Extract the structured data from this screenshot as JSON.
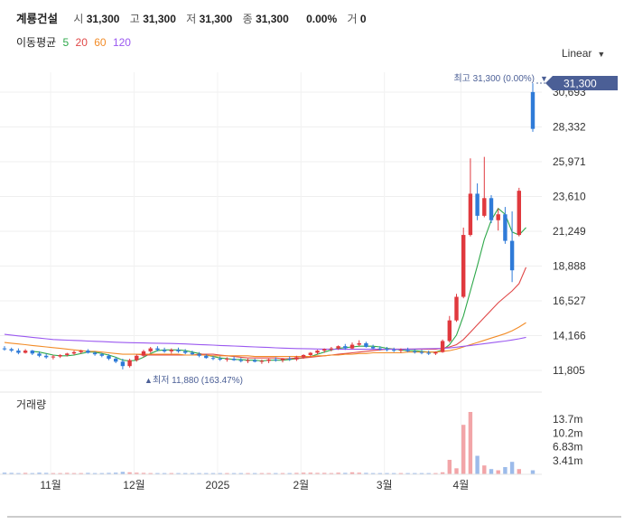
{
  "header": {
    "stock_name": "계룡건설",
    "open_label": "시",
    "open_value": "31,300",
    "high_label": "고",
    "high_value": "31,300",
    "low_label": "저",
    "low_value": "31,300",
    "close_label": "종",
    "close_value": "31,300",
    "change_pct": "0.00%",
    "volume_label": "거",
    "volume_value": "0"
  },
  "ma_legend": {
    "title": "이동평균",
    "items": [
      {
        "label": "5",
        "color": "#2ea84a"
      },
      {
        "label": "20",
        "color": "#e04848"
      },
      {
        "label": "60",
        "color": "#f28c28"
      },
      {
        "label": "120",
        "color": "#9b59f0"
      }
    ]
  },
  "scale_button": {
    "label": "Linear"
  },
  "price_tag": {
    "label": "31,300"
  },
  "high_annotation": "최고 31,300 (0.00%)",
  "low_annotation": "최저 11,880 (163.47%)",
  "volume_panel_title": "거래량",
  "chart_data": {
    "type": "candlestick",
    "y_ticks": [
      "30,693",
      "28,332",
      "25,971",
      "23,610",
      "21,249",
      "18,888",
      "16,527",
      "14,166",
      "11,805"
    ],
    "y_tick_values": [
      30693,
      28332,
      25971,
      23610,
      21249,
      18888,
      16527,
      14166,
      11805
    ],
    "ylim": [
      11805,
      30693
    ],
    "x_ticks": [
      "11월",
      "12월",
      "2025",
      "2월",
      "3월",
      "4월"
    ],
    "x_tick_index": [
      3,
      15,
      27,
      39,
      51,
      62
    ],
    "volume_ticks": [
      "13.7m",
      "10.2m",
      "6.83m",
      "3.41m"
    ],
    "volume_tick_values": [
      13.7,
      10.2,
      6.83,
      3.41
    ],
    "grid": true,
    "candles": [
      {
        "o": 13300,
        "h": 13450,
        "l": 13150,
        "c": 13250
      },
      {
        "o": 13250,
        "h": 13350,
        "l": 13050,
        "c": 13150
      },
      {
        "o": 13150,
        "h": 13300,
        "l": 12900,
        "c": 13000
      },
      {
        "o": 13000,
        "h": 13250,
        "l": 12950,
        "c": 13150
      },
      {
        "o": 13150,
        "h": 13200,
        "l": 12850,
        "c": 12950
      },
      {
        "o": 12950,
        "h": 13100,
        "l": 12700,
        "c": 12800
      },
      {
        "o": 12800,
        "h": 12950,
        "l": 12600,
        "c": 12700
      },
      {
        "o": 12700,
        "h": 12850,
        "l": 12550,
        "c": 12750
      },
      {
        "o": 12750,
        "h": 12900,
        "l": 12650,
        "c": 12850
      },
      {
        "o": 12850,
        "h": 13000,
        "l": 12750,
        "c": 12950
      },
      {
        "o": 12950,
        "h": 13150,
        "l": 12850,
        "c": 13050
      },
      {
        "o": 13050,
        "h": 13200,
        "l": 12950,
        "c": 13150
      },
      {
        "o": 13150,
        "h": 13250,
        "l": 12950,
        "c": 13000
      },
      {
        "o": 13000,
        "h": 13100,
        "l": 12800,
        "c": 12900
      },
      {
        "o": 12900,
        "h": 13000,
        "l": 12700,
        "c": 12800
      },
      {
        "o": 12800,
        "h": 12900,
        "l": 12500,
        "c": 12600
      },
      {
        "o": 12600,
        "h": 12700,
        "l": 12300,
        "c": 12400
      },
      {
        "o": 12400,
        "h": 12600,
        "l": 11880,
        "c": 12100
      },
      {
        "o": 12100,
        "h": 12600,
        "l": 12000,
        "c": 12500
      },
      {
        "o": 12500,
        "h": 12900,
        "l": 12400,
        "c": 12800
      },
      {
        "o": 12800,
        "h": 13200,
        "l": 12700,
        "c": 13100
      },
      {
        "o": 13100,
        "h": 13400,
        "l": 13000,
        "c": 13300
      },
      {
        "o": 13300,
        "h": 13450,
        "l": 13100,
        "c": 13200
      },
      {
        "o": 13200,
        "h": 13350,
        "l": 13000,
        "c": 13100
      },
      {
        "o": 13100,
        "h": 13300,
        "l": 12950,
        "c": 13200
      },
      {
        "o": 13200,
        "h": 13350,
        "l": 13000,
        "c": 13100
      },
      {
        "o": 13100,
        "h": 13250,
        "l": 12900,
        "c": 13000
      },
      {
        "o": 13000,
        "h": 13150,
        "l": 12850,
        "c": 12900
      },
      {
        "o": 12900,
        "h": 13050,
        "l": 12700,
        "c": 12800
      },
      {
        "o": 12800,
        "h": 12900,
        "l": 12600,
        "c": 12650
      },
      {
        "o": 12650,
        "h": 12800,
        "l": 12500,
        "c": 12600
      },
      {
        "o": 12600,
        "h": 12750,
        "l": 12450,
        "c": 12550
      },
      {
        "o": 12550,
        "h": 12700,
        "l": 12400,
        "c": 12600
      },
      {
        "o": 12600,
        "h": 12750,
        "l": 12450,
        "c": 12500
      },
      {
        "o": 12500,
        "h": 12650,
        "l": 12350,
        "c": 12450
      },
      {
        "o": 12450,
        "h": 12600,
        "l": 12300,
        "c": 12500
      },
      {
        "o": 12500,
        "h": 12600,
        "l": 12350,
        "c": 12400
      },
      {
        "o": 12400,
        "h": 12550,
        "l": 12250,
        "c": 12450
      },
      {
        "o": 12450,
        "h": 12600,
        "l": 12300,
        "c": 12550
      },
      {
        "o": 12550,
        "h": 12700,
        "l": 12400,
        "c": 12500
      },
      {
        "o": 12500,
        "h": 12650,
        "l": 12350,
        "c": 12600
      },
      {
        "o": 12600,
        "h": 12750,
        "l": 12450,
        "c": 12550
      },
      {
        "o": 12550,
        "h": 12800,
        "l": 12450,
        "c": 12700
      },
      {
        "o": 12700,
        "h": 12900,
        "l": 12600,
        "c": 12850
      },
      {
        "o": 12850,
        "h": 13050,
        "l": 12750,
        "c": 13000
      },
      {
        "o": 13000,
        "h": 13200,
        "l": 12900,
        "c": 13150
      },
      {
        "o": 13150,
        "h": 13300,
        "l": 13000,
        "c": 13250
      },
      {
        "o": 13250,
        "h": 13400,
        "l": 13100,
        "c": 13300
      },
      {
        "o": 13300,
        "h": 13500,
        "l": 13200,
        "c": 13450
      },
      {
        "o": 13450,
        "h": 13600,
        "l": 13200,
        "c": 13300
      },
      {
        "o": 13300,
        "h": 13700,
        "l": 13250,
        "c": 13550
      },
      {
        "o": 13550,
        "h": 13850,
        "l": 13450,
        "c": 13650
      },
      {
        "o": 13650,
        "h": 13750,
        "l": 13350,
        "c": 13400
      },
      {
        "o": 13400,
        "h": 13550,
        "l": 13250,
        "c": 13300
      },
      {
        "o": 13300,
        "h": 13450,
        "l": 13150,
        "c": 13250
      },
      {
        "o": 13250,
        "h": 13400,
        "l": 13100,
        "c": 13200
      },
      {
        "o": 13200,
        "h": 13350,
        "l": 13050,
        "c": 13150
      },
      {
        "o": 13150,
        "h": 13300,
        "l": 13000,
        "c": 13200
      },
      {
        "o": 13200,
        "h": 13350,
        "l": 13050,
        "c": 13100
      },
      {
        "o": 13100,
        "h": 13250,
        "l": 12950,
        "c": 13050
      },
      {
        "o": 13050,
        "h": 13200,
        "l": 12900,
        "c": 13000
      },
      {
        "o": 13000,
        "h": 13150,
        "l": 12850,
        "c": 12950
      },
      {
        "o": 12950,
        "h": 13100,
        "l": 12850,
        "c": 13050
      },
      {
        "o": 13050,
        "h": 13900,
        "l": 13000,
        "c": 13800
      },
      {
        "o": 13800,
        "h": 15500,
        "l": 13700,
        "c": 15200
      },
      {
        "o": 15200,
        "h": 17000,
        "l": 15100,
        "c": 16800
      },
      {
        "o": 16800,
        "h": 21500,
        "l": 16700,
        "c": 21000
      },
      {
        "o": 21000,
        "h": 26200,
        "l": 20900,
        "c": 23800
      },
      {
        "o": 23800,
        "h": 24500,
        "l": 22000,
        "c": 22300
      },
      {
        "o": 22300,
        "h": 26300,
        "l": 22200,
        "c": 23500
      },
      {
        "o": 23500,
        "h": 23700,
        "l": 21800,
        "c": 22000
      },
      {
        "o": 22000,
        "h": 22800,
        "l": 21300,
        "c": 22400
      },
      {
        "o": 22400,
        "h": 22900,
        "l": 20400,
        "c": 20600
      },
      {
        "o": 20600,
        "h": 22600,
        "l": 17800,
        "c": 18600
      },
      {
        "o": 21000,
        "h": 24200,
        "l": 20900,
        "c": 24000
      },
      {
        "o": 30700,
        "h": 31300,
        "l": 28000,
        "c": 28200
      }
    ],
    "volumes": [
      0.4,
      0.35,
      0.3,
      0.35,
      0.3,
      0.4,
      0.35,
      0.3,
      0.3,
      0.35,
      0.3,
      0.3,
      0.35,
      0.3,
      0.3,
      0.35,
      0.4,
      0.6,
      0.5,
      0.4,
      0.35,
      0.3,
      0.3,
      0.3,
      0.3,
      0.3,
      0.3,
      0.3,
      0.3,
      0.3,
      0.3,
      0.3,
      0.3,
      0.3,
      0.3,
      0.3,
      0.3,
      0.3,
      0.3,
      0.3,
      0.3,
      0.3,
      0.35,
      0.4,
      0.4,
      0.35,
      0.35,
      0.3,
      0.4,
      0.35,
      0.5,
      0.4,
      0.35,
      0.3,
      0.3,
      0.3,
      0.3,
      0.3,
      0.3,
      0.3,
      0.3,
      0.3,
      0.3,
      0.5,
      3.6,
      1.5,
      12.3,
      15.5,
      4.6,
      2.2,
      1.3,
      1.0,
      1.8,
      3.1,
      1.3,
      1.0
    ],
    "moving_averages": [
      {
        "label": "5",
        "color": "#2ea84a",
        "values": [
          null,
          null,
          null,
          null,
          13100,
          13050,
          12950,
          12850,
          12800,
          12800,
          12850,
          12950,
          13050,
          13050,
          12950,
          12850,
          12700,
          12500,
          12450,
          12500,
          12700,
          12950,
          13150,
          13200,
          13200,
          13200,
          13150,
          13050,
          12950,
          12850,
          12750,
          12650,
          12600,
          12550,
          12550,
          12500,
          12500,
          12450,
          12500,
          12500,
          12500,
          12550,
          12600,
          12650,
          12750,
          12900,
          13050,
          13200,
          13300,
          13350,
          13400,
          13450,
          13450,
          13450,
          13400,
          13300,
          13250,
          13200,
          13150,
          13150,
          13100,
          13050,
          13050,
          13200,
          13550,
          14200,
          15500,
          17200,
          18900,
          20700,
          22000,
          22800,
          22400,
          21200,
          21000,
          21500
        ]
      },
      {
        "label": "20",
        "color": "#e04848",
        "values": [
          null,
          null,
          null,
          null,
          null,
          null,
          null,
          null,
          null,
          null,
          null,
          null,
          null,
          null,
          null,
          null,
          null,
          null,
          null,
          12900,
          12850,
          12850,
          12850,
          12850,
          12850,
          12850,
          12850,
          12850,
          12900,
          12900,
          12900,
          12850,
          12800,
          12750,
          12700,
          12650,
          12650,
          12650,
          12650,
          12650,
          12600,
          12600,
          12650,
          12650,
          12700,
          12750,
          12800,
          12850,
          12900,
          12950,
          13000,
          13050,
          13100,
          13150,
          13200,
          13250,
          13250,
          13250,
          13250,
          13250,
          13250,
          13250,
          13250,
          13300,
          13400,
          13550,
          13900,
          14400,
          14900,
          15400,
          15900,
          16400,
          16800,
          17200,
          17700,
          18800
        ]
      },
      {
        "label": "60",
        "color": "#f28c28",
        "values": [
          13700,
          13650,
          13600,
          13550,
          13500,
          13450,
          13400,
          13350,
          13300,
          13250,
          13200,
          13150,
          13100,
          13100,
          13050,
          13000,
          12950,
          12900,
          12900,
          12900,
          12900,
          12900,
          12900,
          12900,
          12900,
          12900,
          12850,
          12850,
          12850,
          12850,
          12800,
          12800,
          12800,
          12800,
          12800,
          12800,
          12750,
          12750,
          12750,
          12750,
          12750,
          12750,
          12750,
          12750,
          12750,
          12800,
          12800,
          12850,
          12850,
          12900,
          12900,
          12950,
          12950,
          13000,
          13000,
          13000,
          13000,
          13000,
          13050,
          13050,
          13050,
          13050,
          13050,
          13100,
          13150,
          13250,
          13400,
          13550,
          13700,
          13850,
          14000,
          14150,
          14300,
          14500,
          14750,
          15050
        ]
      },
      {
        "label": "120",
        "color": "#9b59f0",
        "values": [
          14250,
          14200,
          14150,
          14100,
          14050,
          14000,
          13950,
          13900,
          13880,
          13860,
          13840,
          13820,
          13800,
          13780,
          13760,
          13740,
          13720,
          13700,
          13690,
          13680,
          13670,
          13660,
          13650,
          13640,
          13630,
          13620,
          13600,
          13580,
          13560,
          13540,
          13520,
          13500,
          13480,
          13460,
          13440,
          13420,
          13400,
          13380,
          13360,
          13340,
          13320,
          13300,
          13290,
          13280,
          13270,
          13260,
          13250,
          13240,
          13240,
          13240,
          13240,
          13240,
          13240,
          13240,
          13240,
          13240,
          13240,
          13240,
          13250,
          13260,
          13270,
          13280,
          13290,
          13300,
          13330,
          13380,
          13440,
          13500,
          13560,
          13620,
          13680,
          13740,
          13800,
          13870,
          13950,
          14050
        ]
      }
    ]
  }
}
